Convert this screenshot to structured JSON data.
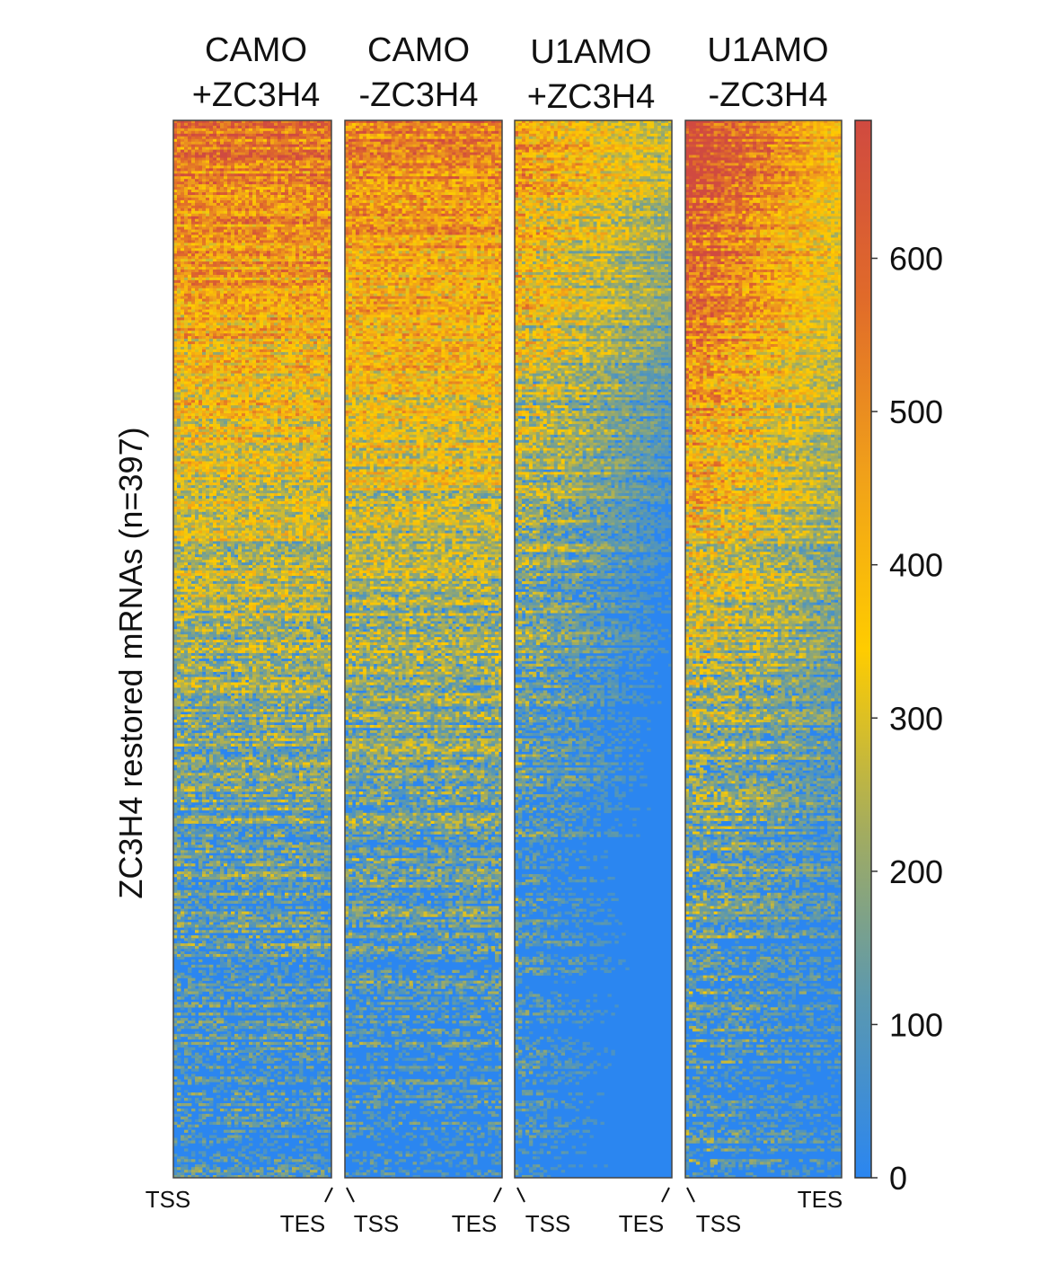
{
  "chart_data": {
    "type": "heatmap",
    "ylabel": "ZC3H4 restored mRNAs (n=397)",
    "rows": 397,
    "panels": [
      {
        "title_line1": "CAMO",
        "title_line2": "+ZC3H4",
        "start_label": "TSS",
        "end_label": "TES",
        "top_level": 560,
        "bottom_level": 50
      },
      {
        "title_line1": "CAMO",
        "title_line2": "-ZC3H4",
        "start_label": "TSS",
        "end_label": "TES",
        "top_level": 540,
        "bottom_level": 45
      },
      {
        "title_line1": "U1AMO",
        "title_line2": "+ZC3H4",
        "start_label": "TSS",
        "end_label": "TES",
        "top_level": 420,
        "bottom_level": 10
      },
      {
        "title_line1": "U1AMO",
        "title_line2": "-ZC3H4",
        "start_label": "TSS",
        "end_label": "TES",
        "top_level": 600,
        "bottom_level": 40
      }
    ],
    "colorbar": {
      "min": 0,
      "max": 690,
      "ticks": [
        0,
        100,
        200,
        300,
        400,
        500,
        600
      ],
      "tick_labels": [
        "0",
        "100",
        "200",
        "300",
        "400",
        "500",
        "600"
      ],
      "colors": [
        "#2b86f0",
        "#5a98b0",
        "#a6ad5c",
        "#ffcc00",
        "#f0a01a",
        "#e06a2a",
        "#d04a40"
      ]
    }
  }
}
